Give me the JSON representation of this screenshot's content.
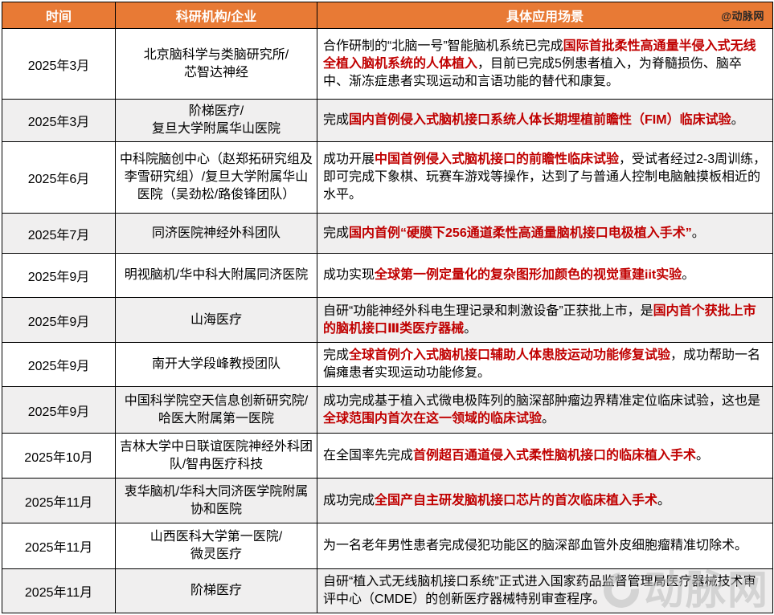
{
  "table": {
    "columns": [
      "时间",
      "科研机构/企业",
      "具体应用场景"
    ],
    "credit": "@动脉网"
  },
  "watermark": {
    "text": "动脉网"
  },
  "colors": {
    "header_bg": "#E87A35",
    "alt_row_bg": "#F0EFEF",
    "highlight_red": "#C00000",
    "header_text": "#FFFFFF",
    "border": "#000000"
  },
  "rows": [
    {
      "time": "2025年3月",
      "org": "北京脑科学与类脑研究所/\n芯智达神经",
      "scenario": [
        {
          "text": "合作研制的“北脑一号”智能脑机系统已完成",
          "red": false
        },
        {
          "text": "国际首批柔性高通量半侵入式无线全植入脑机系统的人体植入",
          "red": true
        },
        {
          "text": "，目前已完成5例患者植入，为脊髓损伤、脑卒中、渐冻症患者实现运动和言语功能的替代和康复。",
          "red": false
        }
      ]
    },
    {
      "time": "2025年3月",
      "org": "阶梯医疗/\n复旦大学附属华山医院",
      "scenario": [
        {
          "text": "完成",
          "red": false
        },
        {
          "text": "国内首例侵入式脑机接口系统人体长期埋植前瞻性（FIM）临床试验",
          "red": true
        },
        {
          "text": "。",
          "red": false
        }
      ]
    },
    {
      "time": "2025年6月",
      "org": "中科院脑创中心（赵郑拓研究组及李雪研究组）/复旦大学附属华山医院（吴劲松/路俊锋团队）",
      "scenario": [
        {
          "text": "成功开展",
          "red": false
        },
        {
          "text": "中国首例侵入式脑机接口的前瞻性临床试验",
          "red": true
        },
        {
          "text": "，受试者经过2-3周训练，即可完成下象棋、玩赛车游戏等操作，达到了与普通人控制电脑触摸板相近的水平。",
          "red": false
        }
      ]
    },
    {
      "time": "2025年7月",
      "org": "同济医院神经外科团队",
      "scenario": [
        {
          "text": "完成",
          "red": false
        },
        {
          "text": "国内首例“硬膜下256通道柔性高通量脑机接口电极植入手术”",
          "red": true
        },
        {
          "text": "。",
          "red": false
        }
      ]
    },
    {
      "time": "2025年9月",
      "org": "明视脑机/华中科大附属同济医院",
      "scenario": [
        {
          "text": "成功实现",
          "red": false
        },
        {
          "text": "全球第一例定量化的复杂图形加颜色的视觉重建iit实验",
          "red": true
        },
        {
          "text": "。",
          "red": false
        }
      ]
    },
    {
      "time": "2025年9月",
      "org": "山海医疗",
      "scenario": [
        {
          "text": "自研“功能神经外科电生理记录和刺激设备”正获批上市，是",
          "red": false
        },
        {
          "text": "国内首个获批上市的脑机接口Ⅲ类医疗器械",
          "red": true
        },
        {
          "text": "。",
          "red": false
        }
      ]
    },
    {
      "time": "2025年9月",
      "org": "南开大学段峰教授团队",
      "scenario": [
        {
          "text": "完成",
          "red": false
        },
        {
          "text": "全球首例介入式脑机接口辅助人体患肢运动功能修复试验",
          "red": true
        },
        {
          "text": "，成功帮助一名偏瘫患者实现运动功能修复。",
          "red": false
        }
      ]
    },
    {
      "time": "2025年9月",
      "org": "中国科学院空天信息创新研究院/\n哈医大附属第一医院",
      "scenario": [
        {
          "text": "成功完成基于植入式微电极阵列的脑深部肿瘤边界精准定位临床试验，这也是",
          "red": false
        },
        {
          "text": "全球范围内首次在这一领域的临床试验",
          "red": true
        },
        {
          "text": "。",
          "red": false
        }
      ]
    },
    {
      "time": "2025年10月",
      "org": "吉林大学中日联谊医院神经外科团队/智冉医疗科技",
      "scenario": [
        {
          "text": "在全国率先完成",
          "red": false
        },
        {
          "text": "首例超百通道侵入式柔性脑机接口的临床植入手术",
          "red": true
        },
        {
          "text": "。",
          "red": false
        }
      ]
    },
    {
      "time": "2025年11月",
      "org": "衷华脑机/华科大同济医学院附属协和医院",
      "scenario": [
        {
          "text": "成功完成",
          "red": false
        },
        {
          "text": "全国产自主研发脑机接口芯片的首次临床植入手术",
          "red": true
        },
        {
          "text": "。",
          "red": false
        }
      ]
    },
    {
      "time": "2025年11月",
      "org": "山西医科大学第一医院/\n微灵医疗",
      "scenario": [
        {
          "text": "为一名老年男性患者完成侵犯功能区的脑深部血管外皮细胞瘤精准切除术。",
          "red": false
        }
      ]
    },
    {
      "time": "2025年11月",
      "org": "阶梯医疗",
      "scenario": [
        {
          "text": "自研“植入式无线脑机接口系统”正式进入国家药品监督管理局医疗器械技术审评中心（CMDE）的创新医疗器械特别审查程序。",
          "red": false
        }
      ]
    }
  ]
}
